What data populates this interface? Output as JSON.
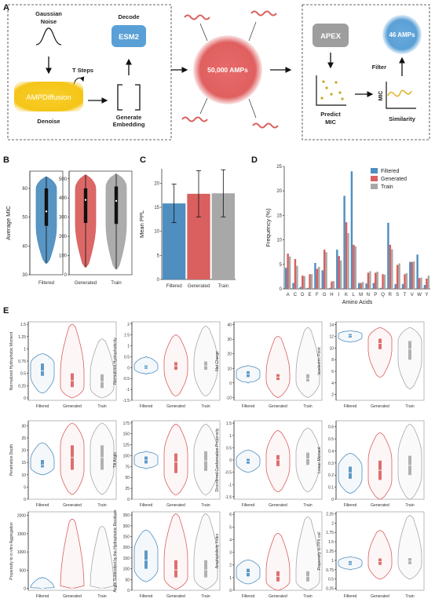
{
  "panel_a": {
    "letter": "A",
    "gaussian_noise": "Gaussian\nNoise",
    "t_steps": "T Steps",
    "ampdiffusion": "AMPDiffusion",
    "denoise": "Denoise",
    "decode": "Decode",
    "esm2": "ESM2",
    "generate_embedding": "Generate\nEmbedding",
    "center_circle": "50,000 AMPs",
    "apex": "APEX",
    "predict_mic": "Predict\nMIC",
    "filter": "Filter",
    "result_circle": "46 AMPs",
    "mic_axis": "MIC",
    "similarity": "Similarity",
    "colors": {
      "ampdiffusion": "#f5c518",
      "esm2": "#5aa0d6",
      "amps": "#e06666",
      "apex": "#9e9e9e",
      "result": "#5aa0d6"
    }
  },
  "colors": {
    "Filtered": "#4f8fc0",
    "Generated": "#d9605f",
    "Train": "#a8a8a8"
  },
  "chart_data": [
    {
      "panel": "B",
      "type": "violin",
      "ylabel": "Average MIC",
      "groups": [
        {
          "category": "Filtered",
          "yticks": [
            30,
            40,
            50,
            60
          ],
          "ylim": [
            30,
            66
          ],
          "min": 34,
          "q1": 47,
          "median": 52,
          "q3": 60,
          "max": 64
        },
        {
          "category": "Generated",
          "yticks": [
            0,
            100,
            200,
            300,
            400,
            500
          ],
          "ylim": [
            0,
            540
          ],
          "min": 40,
          "q1": 270,
          "median": 390,
          "q3": 450,
          "max": 520
        },
        {
          "category": "Train",
          "yticks": [
            0,
            100,
            200,
            300,
            400,
            500
          ],
          "ylim": [
            0,
            540
          ],
          "min": 30,
          "q1": 265,
          "median": 385,
          "q3": 460,
          "max": 525
        }
      ]
    },
    {
      "panel": "C",
      "type": "bar",
      "ylabel": "Mean PPL",
      "categories": [
        "Filtered",
        "Generated",
        "Train"
      ],
      "values": [
        15.8,
        17.8,
        17.9
      ],
      "errors": [
        4,
        4.8,
        4.9
      ],
      "ylim": [
        0,
        23
      ],
      "yticks": [
        0,
        5,
        10,
        15,
        20
      ]
    },
    {
      "panel": "D",
      "type": "bar",
      "xlabel": "Amino Acids",
      "ylabel": "Frequency (%)",
      "categories": [
        "A",
        "C",
        "D",
        "E",
        "F",
        "G",
        "H",
        "I",
        "K",
        "L",
        "M",
        "N",
        "P",
        "Q",
        "R",
        "S",
        "T",
        "V",
        "W",
        "Y"
      ],
      "series": [
        {
          "name": "Filtered",
          "values": [
            4.3,
            1.2,
            0.4,
            0.2,
            5.3,
            3.8,
            0.2,
            8.0,
            19.0,
            24.0,
            1.2,
            1.1,
            1.2,
            0.2,
            13.5,
            1.0,
            1.0,
            5.5,
            7.0,
            0.8
          ]
        },
        {
          "name": "Generated",
          "values": [
            7.2,
            6.1,
            2.7,
            3.0,
            4.1,
            8.0,
            1.5,
            6.7,
            13.6,
            9.0,
            1.2,
            3.3,
            3.3,
            3.0,
            9.0,
            4.9,
            3.0,
            5.5,
            2.2,
            2.1
          ]
        },
        {
          "name": "Train",
          "values": [
            6.6,
            4.7,
            2.6,
            3.0,
            4.5,
            7.5,
            1.6,
            5.8,
            11.4,
            8.7,
            1.4,
            3.6,
            3.5,
            2.9,
            8.1,
            5.2,
            3.2,
            5.6,
            2.3,
            2.7
          ]
        }
      ],
      "ylim": [
        0,
        25
      ],
      "yticks": [
        0,
        5,
        10,
        15,
        20,
        25
      ],
      "legend_position": "top-right"
    },
    {
      "panel": "E",
      "type": "violin",
      "categories": [
        "Filtered",
        "Generated",
        "Train"
      ],
      "subplots": [
        {
          "ylabel": "Normalized Hydrophobic Moment",
          "yticks": [
            0,
            0.25,
            0.5,
            0.75,
            1,
            1.25,
            1.5
          ],
          "ylim": [
            -0.05,
            1.55
          ],
          "groups": [
            {
              "min": 0.1,
              "q1": 0.45,
              "median": 0.55,
              "q3": 0.7,
              "max": 0.9
            },
            {
              "min": 0,
              "q1": 0.22,
              "median": 0.35,
              "q3": 0.5,
              "max": 1.5
            },
            {
              "min": 0,
              "q1": 0.2,
              "median": 0.33,
              "q3": 0.48,
              "max": 1.2
            }
          ]
        },
        {
          "ylabel": "Normalized Hydrophobicity",
          "yticks": [
            -1.5,
            -1,
            -0.5,
            0,
            0.5,
            1,
            1.5,
            2
          ],
          "ylim": [
            -1.5,
            2.1
          ],
          "groups": [
            {
              "min": -0.3,
              "q1": -0.05,
              "median": 0.02,
              "q3": 0.1,
              "max": 0.5
            },
            {
              "min": -1.3,
              "q1": -0.1,
              "median": 0.08,
              "q3": 0.25,
              "max": 1.5
            },
            {
              "min": -1.3,
              "q1": -0.1,
              "median": 0.08,
              "q3": 0.28,
              "max": 1.9
            }
          ]
        },
        {
          "ylabel": "Net Charge",
          "yticks": [
            -10,
            0,
            10,
            20,
            30,
            40
          ],
          "ylim": [
            -12,
            42
          ],
          "groups": [
            {
              "min": 0,
              "q1": 4,
              "median": 6,
              "q3": 8,
              "max": 12
            },
            {
              "min": -10,
              "q1": 2,
              "median": 4,
              "q3": 6,
              "max": 32
            },
            {
              "min": -10,
              "q1": 1,
              "median": 3,
              "q3": 6,
              "max": 38
            }
          ]
        },
        {
          "ylabel": "Isoelectric Point",
          "yticks": [
            2,
            4,
            6,
            8,
            10,
            12,
            14
          ],
          "ylim": [
            1,
            14.5
          ],
          "groups": [
            {
              "min": 11,
              "q1": 11.8,
              "median": 12.1,
              "q3": 12.4,
              "max": 13
            },
            {
              "min": 5,
              "q1": 9.8,
              "median": 10.8,
              "q3": 11.6,
              "max": 13.5
            },
            {
              "min": 3,
              "q1": 8,
              "median": 9.8,
              "q3": 11.2,
              "max": 13.5
            }
          ]
        },
        {
          "ylabel": "Penetration Depth",
          "yticks": [
            0,
            5,
            10,
            15,
            20,
            25,
            30
          ],
          "ylim": [
            0,
            32
          ],
          "groups": [
            {
              "min": 10,
              "q1": 13,
              "median": 14,
              "q3": 16,
              "max": 23
            },
            {
              "min": 2,
              "q1": 12,
              "median": 17,
              "q3": 22,
              "max": 31
            },
            {
              "min": 2,
              "q1": 12,
              "median": 17,
              "q3": 22,
              "max": 31
            }
          ]
        },
        {
          "ylabel": "Tilt Angle",
          "yticks": [
            0,
            25,
            50,
            75,
            100,
            125,
            150,
            175
          ],
          "ylim": [
            0,
            180
          ],
          "groups": [
            {
              "min": 70,
              "q1": 82,
              "median": 90,
              "q3": 98,
              "max": 110
            },
            {
              "min": 10,
              "q1": 60,
              "median": 85,
              "q3": 105,
              "max": 172
            },
            {
              "min": 10,
              "q1": 65,
              "median": 88,
              "q3": 110,
              "max": 172
            }
          ]
        },
        {
          "ylabel": "Disordered Conformation Propensity",
          "yticks": [
            -1.5,
            -1,
            -0.5,
            0,
            0.5,
            1,
            1.5
          ],
          "ylim": [
            -1.6,
            1.6
          ],
          "groups": [
            {
              "min": -0.5,
              "q1": -0.15,
              "median": -0.05,
              "q3": 0.05,
              "max": 0.4
            },
            {
              "min": -1.3,
              "q1": -0.25,
              "median": 0,
              "q3": 0.2,
              "max": 1.2
            },
            {
              "min": -1.3,
              "q1": -0.2,
              "median": 0.05,
              "q3": 0.3,
              "max": 1.3
            }
          ]
        },
        {
          "ylabel": "Linear Moment",
          "yticks": [
            0,
            0.1,
            0.2,
            0.3,
            0.4,
            0.5,
            0.6
          ],
          "ylim": [
            0,
            0.65
          ],
          "groups": [
            {
              "min": 0.05,
              "q1": 0.17,
              "median": 0.22,
              "q3": 0.27,
              "max": 0.38
            },
            {
              "min": 0,
              "q1": 0.16,
              "median": 0.24,
              "q3": 0.32,
              "max": 0.55
            },
            {
              "min": 0,
              "q1": 0.2,
              "median": 0.28,
              "q3": 0.36,
              "max": 0.62
            }
          ]
        },
        {
          "ylabel": "Propensity to in vitro Aggregation",
          "yticks": [
            0,
            500,
            1000,
            1500,
            2000
          ],
          "ylim": [
            -50,
            2100
          ],
          "groups": [
            {
              "min": 0,
              "q1": 2,
              "median": 5,
              "q3": 15,
              "max": 300
            },
            {
              "min": 0,
              "q1": 2,
              "median": 5,
              "q3": 20,
              "max": 1900
            },
            {
              "min": 0,
              "q1": 2,
              "median": 5,
              "q3": 20,
              "max": 1700
            }
          ]
        },
        {
          "ylabel": "Angle Subtended by the Hydrophobic Residues",
          "yticks": [
            0,
            50,
            100,
            150,
            200,
            250,
            300,
            350
          ],
          "ylim": [
            0,
            365
          ],
          "groups": [
            {
              "min": 40,
              "q1": 100,
              "median": 140,
              "q3": 185,
              "max": 280
            },
            {
              "min": 5,
              "q1": 60,
              "median": 95,
              "q3": 140,
              "max": 355
            },
            {
              "min": 5,
              "q1": 60,
              "median": 95,
              "q3": 140,
              "max": 355
            }
          ]
        },
        {
          "ylabel": "Amphiphilicity Index",
          "yticks": [
            0,
            1,
            2,
            3,
            4,
            5,
            6
          ],
          "ylim": [
            0,
            6.2
          ],
          "groups": [
            {
              "min": 0.5,
              "q1": 1.1,
              "median": 1.4,
              "q3": 1.7,
              "max": 2.4
            },
            {
              "min": 0,
              "q1": 0.7,
              "median": 1.1,
              "q3": 1.5,
              "max": 4.5
            },
            {
              "min": 0,
              "q1": 0.7,
              "median": 1.1,
              "q3": 1.5,
              "max": 5.8
            }
          ]
        },
        {
          "ylabel": "Propensity to PPII coil",
          "yticks": [
            0.25,
            0.5,
            0.75,
            1,
            1.25,
            1.5,
            1.75,
            2,
            2.25
          ],
          "ylim": [
            0.2,
            2.3
          ],
          "groups": [
            {
              "min": 0.75,
              "q1": 0.88,
              "median": 0.93,
              "q3": 0.98,
              "max": 1.1
            },
            {
              "min": 0.5,
              "q1": 0.88,
              "median": 0.97,
              "q3": 1.05,
              "max": 1.8
            },
            {
              "min": 0.5,
              "q1": 0.9,
              "median": 0.98,
              "q3": 1.06,
              "max": 2.2
            }
          ]
        }
      ]
    }
  ]
}
